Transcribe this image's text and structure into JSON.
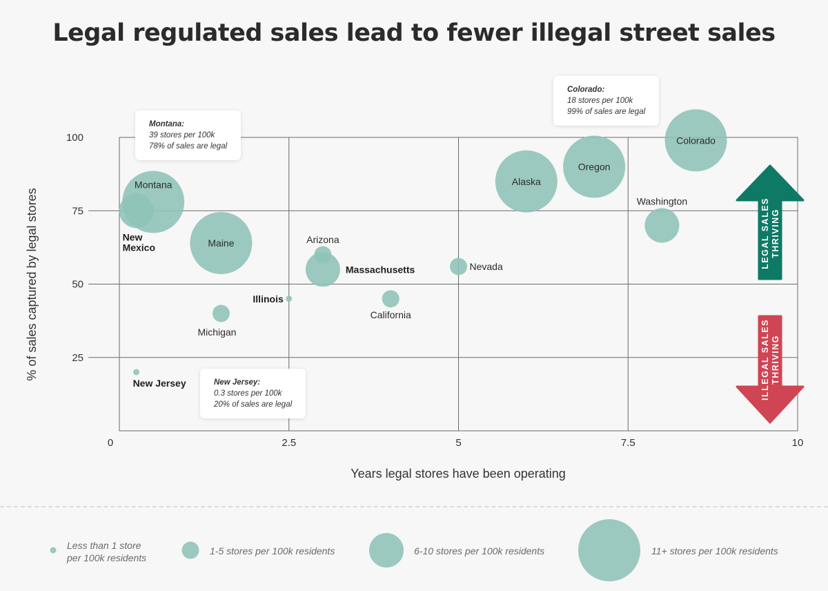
{
  "title": "Legal regulated sales lead to fewer illegal street sales",
  "chart_data": {
    "type": "scatter",
    "xlabel": "Years legal stores have been operating",
    "ylabel": "% of sales captured by legal stores",
    "xlim": [
      0,
      10
    ],
    "ylim": [
      0,
      100
    ],
    "x_ticks": [
      "0",
      "2.5",
      "5",
      "7.5",
      "10"
    ],
    "y_ticks": [
      "25",
      "50",
      "75",
      "100"
    ],
    "grid": true,
    "points": [
      {
        "label": "Montana",
        "x": 0.5,
        "y": 78,
        "size_category": "11+"
      },
      {
        "label": "New Mexico",
        "x": 0.25,
        "y": 75,
        "size_category": "6-10"
      },
      {
        "label": "Maine",
        "x": 1.5,
        "y": 64,
        "size_category": "11+"
      },
      {
        "label": "Michigan",
        "x": 1.5,
        "y": 40,
        "size_category": "1-5"
      },
      {
        "label": "New Jersey",
        "x": 0.25,
        "y": 20,
        "size_category": "<1"
      },
      {
        "label": "Illinois",
        "x": 2.5,
        "y": 45,
        "size_category": "<1"
      },
      {
        "label": "Arizona",
        "x": 3,
        "y": 60,
        "size_category": "1-5"
      },
      {
        "label": "Massachusetts",
        "x": 3,
        "y": 55,
        "size_category": "6-10"
      },
      {
        "label": "California",
        "x": 4,
        "y": 45,
        "size_category": "1-5"
      },
      {
        "label": "Nevada",
        "x": 5,
        "y": 56,
        "size_category": "1-5"
      },
      {
        "label": "Alaska",
        "x": 6,
        "y": 85,
        "size_category": "11+"
      },
      {
        "label": "Oregon",
        "x": 7,
        "y": 90,
        "size_category": "11+"
      },
      {
        "label": "Colorado",
        "x": 8.5,
        "y": 99,
        "size_category": "11+"
      },
      {
        "label": "Washington",
        "x": 8,
        "y": 70,
        "size_category": "6-10"
      }
    ],
    "callouts": [
      {
        "name": "Montana:",
        "line1": "39 stores per 100k",
        "line2": "78% of sales are legal"
      },
      {
        "name": "Colorado:",
        "line1": "18 stores per 100k",
        "line2": "99% of sales are legal"
      },
      {
        "name": "New Jersey:",
        "line1": "0.3 stores per 100k",
        "line2": "20% of sales are legal"
      }
    ],
    "arrows": [
      {
        "text": "LEGAL SALES THRIVING",
        "color": "#0e7a66"
      },
      {
        "text": "ILLEGAL SALES THRIVING",
        "color": "#cf4554"
      }
    ],
    "legend": [
      {
        "label_line1": "Less than 1 store",
        "label_line2": "per 100k residents",
        "size_category": "<1"
      },
      {
        "label_line1": "1-5 stores per 100k residents",
        "label_line2": "",
        "size_category": "1-5"
      },
      {
        "label_line1": "6-10 stores per 100k residents",
        "label_line2": "",
        "size_category": "6-10"
      },
      {
        "label_line1": "11+ stores per 100k residents",
        "label_line2": "",
        "size_category": "11+"
      }
    ],
    "colors": {
      "bubble": "#8ec3b7",
      "legal": "#0e7a66",
      "illegal": "#cf4554"
    }
  }
}
